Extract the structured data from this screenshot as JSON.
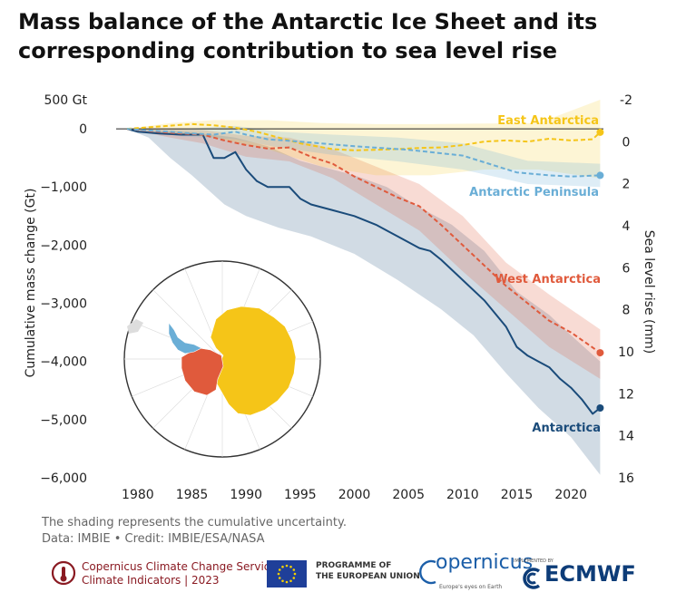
{
  "title": "Mass balance of the Antarctic Ice Sheet and its corresponding contribution to sea level rise",
  "note": {
    "line1": "The shading represents the cumulative uncertainty.",
    "line2": "Data: IMBIE • Credit: IMBIE/ESA/NASA"
  },
  "footer": {
    "c3s_line1": "Copernicus Climate Change Service",
    "c3s_line2": "Climate Indicators | 2023",
    "eu_line1": "PROGRAMME OF",
    "eu_line2": "THE EUROPEAN UNION",
    "copernicus": "opernicus",
    "copernicus_sub": "Europe's eyes on Earth",
    "ecmwf_sub": "IMPLEMENTED BY",
    "ecmwf": "ECMWF"
  },
  "colors": {
    "antarctica": "#1a4b7a",
    "west": "#e05a3c",
    "east": "#f5c518",
    "peninsula": "#6aaed6"
  },
  "chart_data": {
    "type": "line",
    "title": "Mass balance of the Antarctic Ice Sheet and its corresponding contribution to sea level rise",
    "ylabel": "Cumulative mass change (Gt)",
    "y2label": "Sea level rise (mm)",
    "xlim": [
      1978,
      2023
    ],
    "ylim": [
      -6000,
      500
    ],
    "y2lim": [
      -2,
      16
    ],
    "x_ticks": [
      "1980",
      "1985",
      "1990",
      "1995",
      "2000",
      "2005",
      "2010",
      "2015",
      "2020"
    ],
    "y_ticks": [
      "500 Gt",
      "0",
      "−1,000",
      "−2,000",
      "−3,000",
      "−4,000",
      "−5,000",
      "−6,000"
    ],
    "y2_ticks": [
      "-2",
      "0",
      "2",
      "4",
      "6",
      "8",
      "10",
      "12",
      "14",
      "16"
    ],
    "series": [
      {
        "name": "Antarctica",
        "style": "solid",
        "points": [
          [
            1979,
            0
          ],
          [
            1980,
            -50
          ],
          [
            1982,
            -80
          ],
          [
            1984,
            -100
          ],
          [
            1986,
            -100
          ],
          [
            1987,
            -500
          ],
          [
            1988,
            -500
          ],
          [
            1989,
            -400
          ],
          [
            1990,
            -700
          ],
          [
            1991,
            -900
          ],
          [
            1992,
            -1000
          ],
          [
            1994,
            -1000
          ],
          [
            1995,
            -1200
          ],
          [
            1996,
            -1300
          ],
          [
            1998,
            -1400
          ],
          [
            2000,
            -1500
          ],
          [
            2002,
            -1650
          ],
          [
            2004,
            -1850
          ],
          [
            2006,
            -2050
          ],
          [
            2007,
            -2100
          ],
          [
            2008,
            -2250
          ],
          [
            2010,
            -2600
          ],
          [
            2012,
            -2950
          ],
          [
            2014,
            -3400
          ],
          [
            2015,
            -3750
          ],
          [
            2016,
            -3900
          ],
          [
            2017,
            -4000
          ],
          [
            2018,
            -4100
          ],
          [
            2019,
            -4300
          ],
          [
            2020,
            -4450
          ],
          [
            2021,
            -4650
          ],
          [
            2022,
            -4900
          ],
          [
            2022.7,
            -4800
          ]
        ],
        "upper": [
          [
            1979,
            0
          ],
          [
            1981,
            -20
          ],
          [
            1985,
            -60
          ],
          [
            1989,
            -150
          ],
          [
            1992,
            -300
          ],
          [
            1995,
            -550
          ],
          [
            1998,
            -700
          ],
          [
            2000,
            -800
          ],
          [
            2003,
            -1000
          ],
          [
            2006,
            -1350
          ],
          [
            2009,
            -1650
          ],
          [
            2012,
            -2100
          ],
          [
            2015,
            -2800
          ],
          [
            2018,
            -3200
          ],
          [
            2020,
            -3550
          ],
          [
            2022.7,
            -4000
          ]
        ],
        "lower": [
          [
            1979,
            0
          ],
          [
            1981,
            -150
          ],
          [
            1983,
            -500
          ],
          [
            1985,
            -800
          ],
          [
            1988,
            -1300
          ],
          [
            1990,
            -1500
          ],
          [
            1993,
            -1700
          ],
          [
            1996,
            -1850
          ],
          [
            2000,
            -2150
          ],
          [
            2004,
            -2600
          ],
          [
            2008,
            -3100
          ],
          [
            2011,
            -3550
          ],
          [
            2014,
            -4200
          ],
          [
            2017,
            -4800
          ],
          [
            2020,
            -5300
          ],
          [
            2022.7,
            -5950
          ]
        ]
      },
      {
        "name": "West Antarctica",
        "style": "dashed",
        "points": [
          [
            1979,
            0
          ],
          [
            1981,
            -40
          ],
          [
            1984,
            -80
          ],
          [
            1986,
            -100
          ],
          [
            1988,
            -200
          ],
          [
            1990,
            -280
          ],
          [
            1992,
            -340
          ],
          [
            1994,
            -320
          ],
          [
            1996,
            -480
          ],
          [
            1998,
            -600
          ],
          [
            2000,
            -820
          ],
          [
            2002,
            -1000
          ],
          [
            2004,
            -1180
          ],
          [
            2006,
            -1330
          ],
          [
            2008,
            -1650
          ],
          [
            2010,
            -2000
          ],
          [
            2012,
            -2350
          ],
          [
            2014,
            -2700
          ],
          [
            2016,
            -3000
          ],
          [
            2018,
            -3300
          ],
          [
            2020,
            -3500
          ],
          [
            2022.7,
            -3850
          ]
        ],
        "upper": [
          [
            1979,
            0
          ],
          [
            1983,
            0
          ],
          [
            1986,
            -20
          ],
          [
            1990,
            -120
          ],
          [
            1994,
            -150
          ],
          [
            1998,
            -350
          ],
          [
            2002,
            -650
          ],
          [
            2006,
            -950
          ],
          [
            2010,
            -1500
          ],
          [
            2014,
            -2300
          ],
          [
            2018,
            -2850
          ],
          [
            2022.7,
            -3450
          ]
        ],
        "lower": [
          [
            1979,
            0
          ],
          [
            1983,
            -150
          ],
          [
            1986,
            -250
          ],
          [
            1990,
            -480
          ],
          [
            1994,
            -560
          ],
          [
            1998,
            -850
          ],
          [
            2002,
            -1300
          ],
          [
            2006,
            -1750
          ],
          [
            2010,
            -2450
          ],
          [
            2014,
            -3100
          ],
          [
            2018,
            -3750
          ],
          [
            2022.7,
            -4300
          ]
        ]
      },
      {
        "name": "East Antarctica",
        "style": "dashed",
        "points": [
          [
            1979,
            0
          ],
          [
            1982,
            40
          ],
          [
            1985,
            80
          ],
          [
            1987,
            60
          ],
          [
            1989,
            20
          ],
          [
            1991,
            -50
          ],
          [
            1993,
            -150
          ],
          [
            1995,
            -250
          ],
          [
            1998,
            -350
          ],
          [
            2000,
            -370
          ],
          [
            2002,
            -360
          ],
          [
            2004,
            -350
          ],
          [
            2006,
            -330
          ],
          [
            2008,
            -320
          ],
          [
            2010,
            -280
          ],
          [
            2012,
            -220
          ],
          [
            2014,
            -200
          ],
          [
            2016,
            -220
          ],
          [
            2018,
            -170
          ],
          [
            2020,
            -200
          ],
          [
            2022,
            -180
          ],
          [
            2022.7,
            -60
          ]
        ],
        "upper": [
          [
            1979,
            0
          ],
          [
            1983,
            100
          ],
          [
            1987,
            150
          ],
          [
            1992,
            150
          ],
          [
            1997,
            100
          ],
          [
            2002,
            80
          ],
          [
            2007,
            80
          ],
          [
            2012,
            90
          ],
          [
            2017,
            100
          ],
          [
            2022.7,
            500
          ]
        ],
        "lower": [
          [
            1979,
            0
          ],
          [
            1983,
            -80
          ],
          [
            1987,
            -150
          ],
          [
            1992,
            -350
          ],
          [
            1997,
            -650
          ],
          [
            2002,
            -800
          ],
          [
            2007,
            -800
          ],
          [
            2012,
            -700
          ],
          [
            2017,
            -700
          ],
          [
            2022.7,
            -850
          ]
        ]
      },
      {
        "name": "Antarctic Peninsula",
        "style": "dashed",
        "points": [
          [
            1979,
            0
          ],
          [
            1981,
            -30
          ],
          [
            1983,
            -50
          ],
          [
            1985,
            -80
          ],
          [
            1987,
            -100
          ],
          [
            1989,
            -50
          ],
          [
            1990,
            -100
          ],
          [
            1992,
            -180
          ],
          [
            1995,
            -220
          ],
          [
            2000,
            -300
          ],
          [
            2005,
            -360
          ],
          [
            2010,
            -460
          ],
          [
            2015,
            -750
          ],
          [
            2018,
            -800
          ],
          [
            2020,
            -820
          ],
          [
            2022.7,
            -800
          ]
        ],
        "upper": [
          [
            1979,
            0
          ],
          [
            1984,
            0
          ],
          [
            1989,
            50
          ],
          [
            1993,
            -50
          ],
          [
            1998,
            -100
          ],
          [
            2004,
            -150
          ],
          [
            2010,
            -250
          ],
          [
            2016,
            -550
          ],
          [
            2022.7,
            -600
          ]
        ],
        "lower": [
          [
            1979,
            0
          ],
          [
            1984,
            -130
          ],
          [
            1989,
            -180
          ],
          [
            1993,
            -320
          ],
          [
            1998,
            -450
          ],
          [
            2004,
            -560
          ],
          [
            2010,
            -700
          ],
          [
            2016,
            -950
          ],
          [
            2022.7,
            -1000
          ]
        ]
      }
    ]
  }
}
